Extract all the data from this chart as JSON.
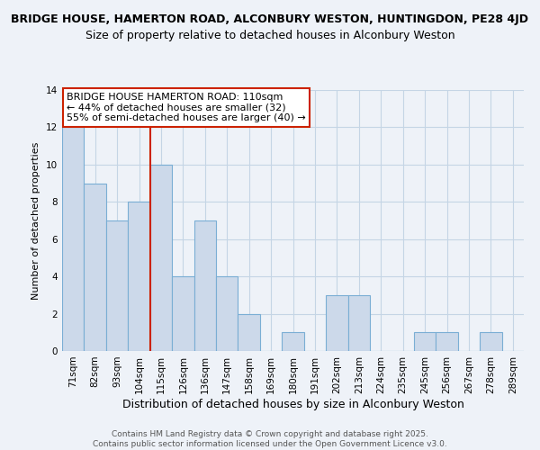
{
  "title": "BRIDGE HOUSE, HAMERTON ROAD, ALCONBURY WESTON, HUNTINGDON, PE28 4JD",
  "subtitle": "Size of property relative to detached houses in Alconbury Weston",
  "xlabel": "Distribution of detached houses by size in Alconbury Weston",
  "ylabel": "Number of detached properties",
  "bar_labels": [
    "71sqm",
    "82sqm",
    "93sqm",
    "104sqm",
    "115sqm",
    "126sqm",
    "136sqm",
    "147sqm",
    "158sqm",
    "169sqm",
    "180sqm",
    "191sqm",
    "202sqm",
    "213sqm",
    "224sqm",
    "235sqm",
    "245sqm",
    "256sqm",
    "267sqm",
    "278sqm",
    "289sqm"
  ],
  "bar_values": [
    12,
    9,
    7,
    8,
    10,
    4,
    7,
    4,
    2,
    0,
    1,
    0,
    3,
    3,
    0,
    0,
    1,
    1,
    0,
    1,
    0
  ],
  "bar_color": "#ccd9ea",
  "bar_edge_color": "#7aaed4",
  "highlight_line_color": "#cc2200",
  "ylim": [
    0,
    14
  ],
  "yticks": [
    0,
    2,
    4,
    6,
    8,
    10,
    12,
    14
  ],
  "annotation_title": "BRIDGE HOUSE HAMERTON ROAD: 110sqm",
  "annotation_line1": "← 44% of detached houses are smaller (32)",
  "annotation_line2": "55% of semi-detached houses are larger (40) →",
  "annotation_box_color": "#ffffff",
  "annotation_border_color": "#cc2200",
  "footer1": "Contains HM Land Registry data © Crown copyright and database right 2025.",
  "footer2": "Contains public sector information licensed under the Open Government Licence v3.0.",
  "bg_color": "#eef2f8",
  "grid_color": "#c5d5e5",
  "title_fontsize": 9,
  "subtitle_fontsize": 9,
  "xlabel_fontsize": 9,
  "ylabel_fontsize": 8,
  "tick_fontsize": 7.5,
  "annotation_fontsize": 8,
  "footer_fontsize": 6.5
}
